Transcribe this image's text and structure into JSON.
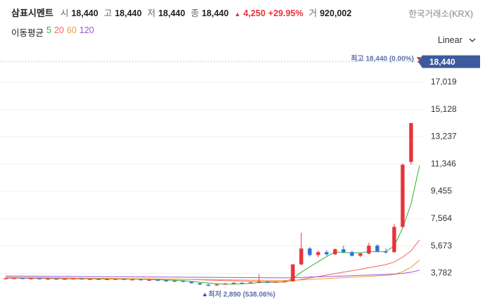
{
  "header": {
    "name": "삼표시멘트",
    "fields": [
      {
        "label": "시",
        "value": "18,440"
      },
      {
        "label": "고",
        "value": "18,440"
      },
      {
        "label": "저",
        "value": "18,440"
      },
      {
        "label": "종",
        "value": "18,440"
      }
    ],
    "change": "4,250",
    "change_pct": "+29.95%",
    "volume_label": "거",
    "volume": "920,002",
    "exchange": "한국거래소(KRX)",
    "scale_mode": "Linear"
  },
  "chart_data": {
    "type": "candlestick",
    "legend_title": "이동평균",
    "up_color": "#e8333a",
    "down_color": "#2f6fd6",
    "grid": true,
    "ylim": [
      2000,
      19300
    ],
    "yticks": [
      {
        "value": 3782,
        "label": "3,782"
      },
      {
        "value": 5673,
        "label": "5,673"
      },
      {
        "value": 7564,
        "label": "7,564"
      },
      {
        "value": 9455,
        "label": "9,455"
      },
      {
        "value": 11346,
        "label": "11,346"
      },
      {
        "value": 13237,
        "label": "13,237"
      },
      {
        "value": 15128,
        "label": "15,128"
      },
      {
        "value": 17019,
        "label": "17,019"
      }
    ],
    "current_price": {
      "value": 18440,
      "label": "18,440"
    },
    "high_annotation": "최고 18,440 (0.00%)",
    "low_annotation": "최저 2,890 (538.06%)",
    "open": [
      3440,
      3450,
      3460,
      3430,
      3440,
      3410,
      3420,
      3380,
      3410,
      3430,
      3390,
      3400,
      3360,
      3390,
      3400,
      3350,
      3370,
      3330,
      3340,
      3290,
      3260,
      3270,
      3190,
      3100,
      3000,
      2960,
      3020,
      3080,
      3130,
      3110,
      3160,
      3200,
      3170,
      3210,
      3230,
      4400,
      5500,
      5050,
      5250,
      5100,
      5450,
      5250,
      5000,
      5150,
      5700,
      5300,
      5250,
      7000,
      11500,
      18440
    ],
    "high": [
      3470,
      3480,
      3470,
      3460,
      3450,
      3440,
      3430,
      3420,
      3440,
      3450,
      3420,
      3410,
      3400,
      3420,
      3410,
      3380,
      3390,
      3360,
      3350,
      3320,
      3290,
      3280,
      3210,
      3120,
      3050,
      3040,
      3100,
      3150,
      3170,
      3180,
      3720,
      3240,
      3220,
      3260,
      4420,
      6600,
      5600,
      5350,
      5400,
      5500,
      5700,
      5350,
      5200,
      5900,
      5800,
      5500,
      7200,
      11400,
      14190,
      18440
    ],
    "low": [
      3420,
      3430,
      3420,
      3410,
      3400,
      3390,
      3370,
      3370,
      3390,
      3380,
      3370,
      3350,
      3350,
      3370,
      3340,
      3330,
      3320,
      3310,
      3280,
      3250,
      3230,
      3180,
      3080,
      2980,
      2890,
      2940,
      3000,
      3060,
      3090,
      3100,
      3140,
      3150,
      3150,
      3180,
      3220,
      4350,
      4950,
      4900,
      5000,
      5050,
      5200,
      4950,
      4900,
      5100,
      5250,
      5150,
      5200,
      6900,
      11300,
      18440
    ],
    "close": [
      3450,
      3460,
      3430,
      3440,
      3410,
      3420,
      3380,
      3410,
      3430,
      3390,
      3400,
      3360,
      3390,
      3400,
      3350,
      3370,
      3330,
      3340,
      3290,
      3260,
      3270,
      3190,
      3100,
      3000,
      2960,
      3020,
      3080,
      3130,
      3110,
      3160,
      3200,
      3170,
      3210,
      3230,
      4400,
      5500,
      5050,
      5250,
      5100,
      5450,
      5250,
      5000,
      5150,
      5700,
      5300,
      5250,
      7000,
      11300,
      14190,
      18440
    ],
    "series": [
      {
        "name": "5",
        "color": "#2fae3a",
        "values": [
          3440,
          3445,
          3440,
          3440,
          3435,
          3430,
          3415,
          3410,
          3410,
          3405,
          3405,
          3395,
          3390,
          3390,
          3380,
          3375,
          3370,
          3355,
          3340,
          3315,
          3300,
          3270,
          3225,
          3165,
          3105,
          3060,
          3030,
          3040,
          3060,
          3090,
          3140,
          3160,
          3170,
          3190,
          3430,
          3860,
          4230,
          4590,
          4950,
          5270,
          5220,
          5210,
          5190,
          5310,
          5270,
          5290,
          5680,
          6910,
          8610,
          11240
        ]
      },
      {
        "name": "20",
        "color": "#f06464",
        "values": [
          3460,
          3458,
          3455,
          3452,
          3450,
          3447,
          3443,
          3440,
          3437,
          3434,
          3430,
          3426,
          3422,
          3418,
          3413,
          3408,
          3402,
          3396,
          3389,
          3381,
          3373,
          3363,
          3350,
          3333,
          3315,
          3298,
          3282,
          3268,
          3253,
          3240,
          3230,
          3218,
          3207,
          3200,
          3255,
          3370,
          3460,
          3560,
          3660,
          3770,
          3870,
          3965,
          4060,
          4175,
          4280,
          4385,
          4570,
          4900,
          5350,
          6100
        ]
      },
      {
        "name": "60",
        "color": "#f29b38",
        "values": [
          3520,
          3513,
          3506,
          3499,
          3492,
          3485,
          3478,
          3471,
          3464,
          3457,
          3450,
          3443,
          3436,
          3429,
          3422,
          3415,
          3408,
          3401,
          3394,
          3387,
          3380,
          3373,
          3366,
          3359,
          3352,
          3345,
          3338,
          3331,
          3324,
          3317,
          3310,
          3303,
          3296,
          3289,
          3300,
          3330,
          3360,
          3390,
          3420,
          3450,
          3480,
          3510,
          3540,
          3575,
          3610,
          3645,
          3700,
          3900,
          4200,
          4700
        ]
      },
      {
        "name": "120",
        "color": "#9b59d0",
        "values": [
          3600,
          3596,
          3592,
          3588,
          3584,
          3580,
          3576,
          3572,
          3568,
          3564,
          3560,
          3556,
          3552,
          3548,
          3544,
          3540,
          3536,
          3532,
          3528,
          3524,
          3520,
          3516,
          3512,
          3508,
          3504,
          3500,
          3496,
          3492,
          3488,
          3484,
          3480,
          3476,
          3472,
          3468,
          3480,
          3500,
          3520,
          3540,
          3560,
          3580,
          3600,
          3620,
          3640,
          3660,
          3680,
          3700,
          3730,
          3780,
          3860,
          4000
        ]
      }
    ]
  }
}
